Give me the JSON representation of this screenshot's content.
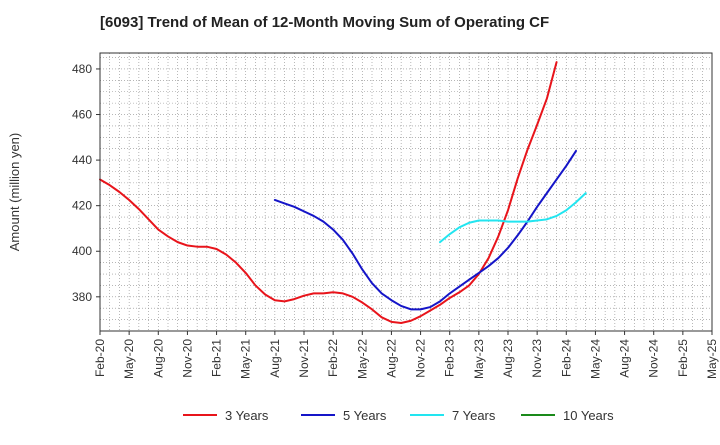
{
  "chart_data": {
    "type": "line",
    "title": "[6093]  Trend of Mean of 12-Month Moving Sum of Operating CF",
    "xlabel": "",
    "ylabel": "Amount (million yen)",
    "x_tick_labels": [
      "Feb-20",
      "May-20",
      "Aug-20",
      "Nov-20",
      "Feb-21",
      "May-21",
      "Aug-21",
      "Nov-21",
      "Feb-22",
      "May-22",
      "Aug-22",
      "Nov-22",
      "Feb-23",
      "May-23",
      "Aug-23",
      "Nov-23",
      "Feb-24",
      "May-24",
      "Aug-24",
      "Nov-24",
      "Feb-25",
      "May-25"
    ],
    "y_ticks": [
      380,
      400,
      420,
      440,
      460,
      480
    ],
    "ylim": [
      365,
      487
    ],
    "grid": true,
    "legend_position": "bottom",
    "series": [
      {
        "name": "3 Years",
        "color": "#e8141b",
        "start_month_index": 0,
        "values": [
          431.5,
          429.0,
          426.0,
          422.5,
          418.5,
          414.0,
          409.5,
          406.5,
          404.0,
          402.5,
          402.0,
          402.0,
          401.0,
          398.5,
          395.0,
          390.5,
          385.0,
          381.0,
          378.5,
          378.0,
          379.0,
          380.5,
          381.5,
          381.5,
          382.0,
          381.5,
          380.0,
          377.5,
          374.5,
          371.0,
          369.0,
          368.5,
          369.5,
          371.5,
          374.0,
          376.5,
          379.5,
          382.0,
          385.0,
          390.0,
          397.0,
          406.5,
          418.0,
          432.0,
          444.5,
          455.5,
          467.0,
          483.0
        ]
      },
      {
        "name": "5 Years",
        "color": "#1515c8",
        "start_month_index": 18,
        "values": [
          422.5,
          421.0,
          419.5,
          417.5,
          415.5,
          413.0,
          409.5,
          405.0,
          399.0,
          392.0,
          386.0,
          381.5,
          378.5,
          376.0,
          374.5,
          374.5,
          375.5,
          378.0,
          381.5,
          384.5,
          387.5,
          390.5,
          393.5,
          397.0,
          401.5,
          407.0,
          413.0,
          419.5,
          425.5,
          431.5,
          437.5,
          444.0
        ]
      },
      {
        "name": "7 Years",
        "color": "#22e5f0",
        "start_month_index": 35,
        "values": [
          404.0,
          407.5,
          410.5,
          412.5,
          413.5,
          413.5,
          413.5,
          413.0,
          413.0,
          413.0,
          413.5,
          414.0,
          415.5,
          418.0,
          421.5,
          425.5
        ]
      },
      {
        "name": "10 Years",
        "color": "#1a8a1a",
        "start_month_index": 0,
        "values": []
      }
    ]
  }
}
